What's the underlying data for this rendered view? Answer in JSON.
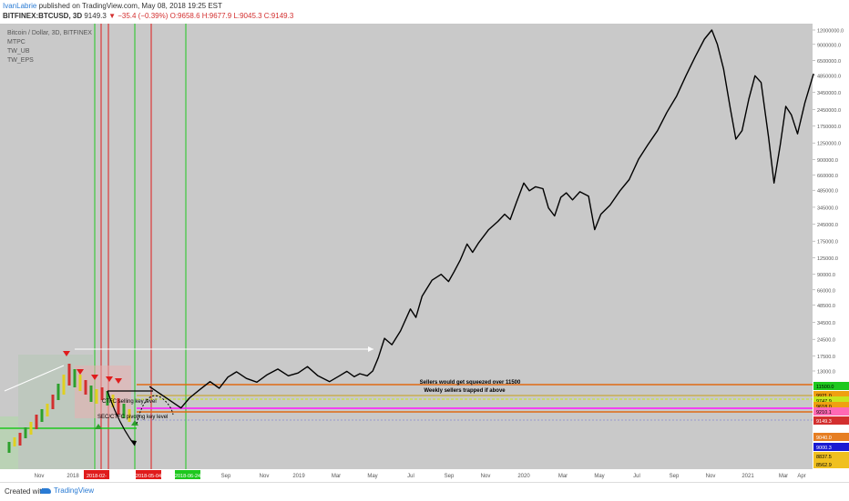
{
  "header": {
    "author": "IvanLabrie",
    "published_text": "published on TradingView.com, May 08, 2018 19:25 EST",
    "symbol": "BITFINEX:BTCUSD, 3D",
    "last_price": "9149.3",
    "change": "−35.4 (−0.39%)",
    "ohlc": "O:9658.6 H:9677.9 L:9045.3 C:9149.3"
  },
  "legend": {
    "title": "Bitcoin / Dollar, 3D, BITFINEX",
    "indicators": [
      "MTPC",
      "TW_UB",
      "TW_EPS"
    ]
  },
  "footer": {
    "created_with": "Created with",
    "brand": "TradingView"
  },
  "colors": {
    "background": "#c9c9c9",
    "price_line": "#000000",
    "green_marker": "#1ec81e",
    "red_marker": "#e01c1c",
    "orange_level": "#e06a14",
    "magenta_level": "#ff14ff",
    "white_arrow": "#ffffff"
  },
  "chart_data": {
    "type": "line",
    "y_scale": "log",
    "y_axis_ticks": [
      "12000000.0",
      "9000000.0",
      "6500000.0",
      "4850000.0",
      "3450000.0",
      "2450000.0",
      "1750000.0",
      "1250000.0",
      "900000.0",
      "660000.0",
      "485000.0",
      "345000.0",
      "245000.0",
      "175000.0",
      "125000.0",
      "90000.0",
      "66000.0",
      "48500.0",
      "34500.0",
      "24500.0",
      "17500.0",
      "13000.0"
    ],
    "x_axis_labels": [
      "Nov",
      "2018",
      "Sep",
      "Nov",
      "2019",
      "Mar",
      "May",
      "Jul",
      "Sep",
      "Nov",
      "2020",
      "Mar",
      "May",
      "Jul",
      "Sep",
      "Nov",
      "2021",
      "Mar",
      "Apr"
    ],
    "date_markers": [
      "2018-02-",
      "2018-05-04",
      "2018-06-24"
    ],
    "price_labels": [
      {
        "value": "11500.0",
        "color": "#1ec81e"
      },
      {
        "value": "9921.0",
        "color": "#f0a010"
      },
      {
        "value": "9747.9",
        "color": "#c8e61e"
      },
      {
        "value": "9618.0",
        "color": "#f0a010"
      },
      {
        "value": "9210.1",
        "color": "#ff69b4"
      },
      {
        "value": "9149.3",
        "color": "#d32f2f"
      },
      {
        "value": "9040.0",
        "color": "#e67e22"
      },
      {
        "value": "9000.3",
        "color": "#1a1ad2"
      },
      {
        "value": "8837.5",
        "color": "#f0c020"
      },
      {
        "value": "8562.9",
        "color": "#f0c020"
      }
    ],
    "annotations": [
      "Sellers would get squeezed over 11500",
      "Weekly sellers trapped if above",
      "CTFC selling key level",
      "SEC/CTFC pivoting key level"
    ],
    "projection_series": {
      "name": "",
      "points": [
        [
          "2018-05-04",
          9500
        ],
        [
          "2018-06-24",
          6200
        ],
        [
          "2018-07-08",
          7600
        ],
        [
          "2018-07-25",
          9000
        ],
        [
          "2018-08-10",
          10500
        ],
        [
          "2018-08-25",
          9200
        ],
        [
          "2018-09-08",
          11500
        ],
        [
          "2018-09-22",
          12800
        ],
        [
          "2018-10-08",
          11200
        ],
        [
          "2018-10-25",
          10400
        ],
        [
          "2018-11-10",
          12000
        ],
        [
          "2018-11-28",
          13500
        ],
        [
          "2018-12-15",
          11800
        ],
        [
          "2018-12-31",
          12500
        ],
        [
          "2019-01-15",
          14200
        ],
        [
          "2019-02-01",
          11800
        ],
        [
          "2019-02-20",
          10500
        ],
        [
          "2019-03-08",
          11800
        ],
        [
          "2019-03-20",
          12900
        ],
        [
          "2019-04-01",
          11600
        ],
        [
          "2019-04-10",
          12300
        ],
        [
          "2019-04-22",
          11800
        ],
        [
          "2019-05-01",
          13000
        ],
        [
          "2019-05-10",
          17000
        ],
        [
          "2019-05-20",
          25000
        ],
        [
          "2019-06-01",
          22000
        ],
        [
          "2019-06-15",
          29000
        ],
        [
          "2019-07-01",
          45000
        ],
        [
          "2019-07-10",
          38000
        ],
        [
          "2019-07-20",
          58000
        ],
        [
          "2019-08-05",
          80000
        ],
        [
          "2019-08-20",
          90000
        ],
        [
          "2019-09-01",
          78000
        ],
        [
          "2019-09-10",
          95000
        ],
        [
          "2019-09-20",
          120000
        ],
        [
          "2019-10-01",
          165000
        ],
        [
          "2019-10-10",
          140000
        ],
        [
          "2019-10-20",
          170000
        ],
        [
          "2019-11-05",
          220000
        ],
        [
          "2019-11-20",
          260000
        ],
        [
          "2019-12-01",
          300000
        ],
        [
          "2019-12-10",
          270000
        ],
        [
          "2019-12-20",
          380000
        ],
        [
          "2020-01-01",
          560000
        ],
        [
          "2020-01-10",
          480000
        ],
        [
          "2020-01-20",
          520000
        ],
        [
          "2020-02-01",
          500000
        ],
        [
          "2020-02-10",
          340000
        ],
        [
          "2020-02-20",
          290000
        ],
        [
          "2020-03-01",
          420000
        ],
        [
          "2020-03-10",
          460000
        ],
        [
          "2020-03-20",
          400000
        ],
        [
          "2020-04-01",
          470000
        ],
        [
          "2020-04-15",
          430000
        ],
        [
          "2020-04-25",
          220000
        ],
        [
          "2020-05-05",
          300000
        ],
        [
          "2020-05-20",
          360000
        ],
        [
          "2020-06-05",
          480000
        ],
        [
          "2020-06-20",
          600000
        ],
        [
          "2020-07-05",
          900000
        ],
        [
          "2020-07-20",
          1200000
        ],
        [
          "2020-08-05",
          1600000
        ],
        [
          "2020-08-20",
          2300000
        ],
        [
          "2020-09-05",
          3200000
        ],
        [
          "2020-09-20",
          4800000
        ],
        [
          "2020-10-05",
          7000000
        ],
        [
          "2020-10-20",
          10000000
        ],
        [
          "2020-11-01",
          12000000
        ],
        [
          "2020-11-10",
          9000000
        ],
        [
          "2020-11-20",
          5500000
        ],
        [
          "2020-12-01",
          2500000
        ],
        [
          "2020-12-10",
          1350000
        ],
        [
          "2020-12-20",
          1600000
        ],
        [
          "2020-12-31",
          3000000
        ],
        [
          "2021-01-10",
          4800000
        ],
        [
          "2021-01-20",
          4200000
        ],
        [
          "2021-02-01",
          1400000
        ],
        [
          "2021-02-10",
          560000
        ],
        [
          "2021-02-20",
          1200000
        ],
        [
          "2021-03-01",
          2600000
        ],
        [
          "2021-03-10",
          2200000
        ],
        [
          "2021-03-20",
          1500000
        ],
        [
          "2021-04-01",
          2800000
        ],
        [
          "2021-04-15",
          5000000
        ]
      ]
    }
  }
}
